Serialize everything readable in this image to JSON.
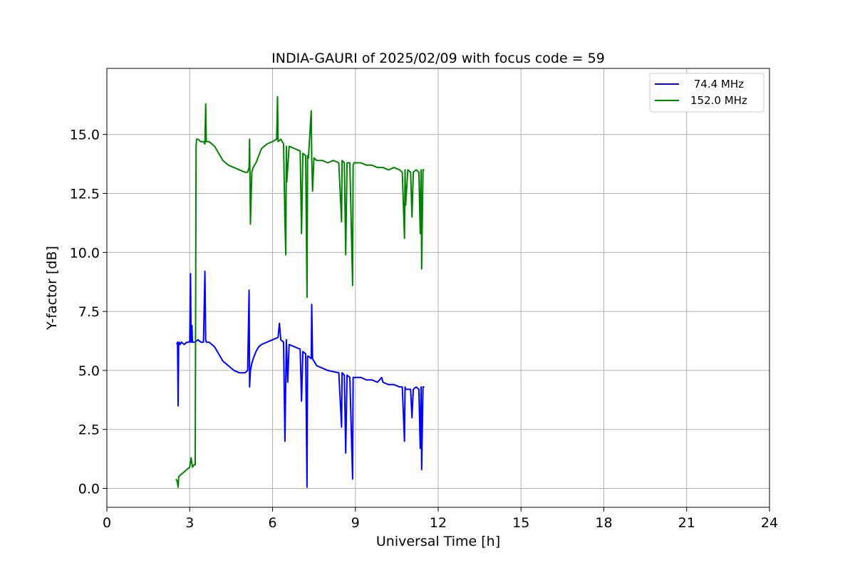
{
  "chart_data": {
    "type": "line",
    "title": "INDIA-GAURI of 2025/02/09 with focus code = 59",
    "xlabel": "Universal Time [h]",
    "ylabel": "Y-factor [dB]",
    "xlim": [
      0,
      24
    ],
    "ylim": [
      -0.8,
      17.8
    ],
    "xticks": [
      0,
      3,
      6,
      9,
      12,
      15,
      18,
      21,
      24
    ],
    "xtick_labels": [
      "0",
      "3",
      "6",
      "9",
      "12",
      "15",
      "18",
      "21",
      "24"
    ],
    "yticks": [
      0,
      2.5,
      5,
      7.5,
      10,
      12.5,
      15
    ],
    "ytick_labels": [
      "0.0",
      "2.5",
      "5.0",
      "7.5",
      "10.0",
      "12.5",
      "15.0"
    ],
    "grid": true,
    "legend_position": "top-right",
    "series": [
      {
        "name": " 74.4 MHz",
        "color": "#0000ff",
        "x": [
          2.53,
          2.56,
          2.58,
          2.6,
          2.62,
          2.65,
          2.7,
          2.8,
          2.9,
          3.0,
          3.03,
          3.05,
          3.08,
          3.1,
          3.2,
          3.3,
          3.4,
          3.5,
          3.55,
          3.58,
          3.6,
          3.7,
          3.8,
          3.9,
          4.0,
          4.1,
          4.2,
          4.4,
          4.6,
          4.8,
          5.0,
          5.1,
          5.15,
          5.17,
          5.2,
          5.25,
          5.3,
          5.4,
          5.5,
          5.6,
          5.8,
          6.0,
          6.2,
          6.25,
          6.3,
          6.4,
          6.45,
          6.5,
          6.55,
          6.6,
          6.8,
          7.0,
          7.05,
          7.1,
          7.2,
          7.25,
          7.27,
          7.3,
          7.4,
          7.42,
          7.45,
          7.5,
          7.6,
          7.8,
          8.0,
          8.2,
          8.4,
          8.5,
          8.52,
          8.6,
          8.65,
          8.7,
          8.8,
          8.9,
          8.92,
          8.95,
          9.0,
          9.2,
          9.4,
          9.6,
          9.8,
          9.95,
          10.0,
          10.2,
          10.4,
          10.6,
          10.7,
          10.78,
          10.8,
          10.82,
          10.9,
          11.0,
          11.05,
          11.1,
          11.2,
          11.3,
          11.35,
          11.38,
          11.4,
          11.45,
          11.5
        ],
        "y": [
          6.1,
          6.2,
          3.5,
          6.1,
          6.2,
          6.1,
          6.2,
          6.1,
          6.2,
          6.2,
          9.1,
          6.2,
          6.9,
          6.2,
          6.2,
          6.3,
          6.2,
          6.2,
          9.2,
          6.3,
          6.2,
          6.2,
          6.1,
          6.0,
          5.8,
          5.6,
          5.4,
          5.2,
          5.0,
          4.9,
          4.9,
          5.0,
          8.4,
          4.3,
          5.0,
          5.3,
          5.5,
          5.8,
          6.0,
          6.1,
          6.2,
          6.3,
          6.4,
          7.0,
          6.3,
          6.2,
          2.0,
          6.3,
          4.5,
          6.1,
          6.0,
          5.9,
          3.7,
          5.8,
          5.7,
          0.05,
          5.6,
          5.6,
          5.5,
          7.8,
          5.5,
          5.4,
          5.2,
          5.1,
          5.0,
          4.95,
          4.9,
          2.6,
          4.9,
          4.8,
          1.5,
          4.8,
          4.7,
          0.4,
          4.7,
          4.7,
          4.7,
          4.7,
          4.6,
          4.6,
          4.5,
          4.7,
          4.5,
          4.4,
          4.4,
          4.3,
          4.3,
          2.0,
          4.3,
          4.2,
          4.2,
          4.2,
          3.0,
          4.2,
          4.3,
          4.2,
          1.7,
          4.3,
          0.8,
          4.3,
          4.3
        ]
      },
      {
        "name": "152.0 MHz",
        "color": "#008000",
        "x": [
          2.5,
          2.55,
          2.58,
          2.6,
          2.7,
          2.8,
          2.9,
          3.0,
          3.05,
          3.1,
          3.15,
          3.2,
          3.23,
          3.25,
          3.3,
          3.4,
          3.5,
          3.55,
          3.58,
          3.6,
          3.7,
          3.8,
          3.9,
          4.0,
          4.1,
          4.2,
          4.4,
          4.6,
          4.8,
          5.0,
          5.1,
          5.15,
          5.17,
          5.2,
          5.25,
          5.3,
          5.4,
          5.5,
          5.6,
          5.8,
          6.0,
          6.15,
          6.18,
          6.2,
          6.3,
          6.4,
          6.45,
          6.48,
          6.5,
          6.52,
          6.6,
          6.8,
          7.0,
          7.05,
          7.1,
          7.2,
          7.25,
          7.27,
          7.3,
          7.4,
          7.42,
          7.45,
          7.5,
          7.6,
          7.8,
          8.0,
          8.2,
          8.4,
          8.5,
          8.52,
          8.6,
          8.65,
          8.7,
          8.8,
          8.9,
          8.92,
          8.95,
          9.0,
          9.2,
          9.4,
          9.6,
          9.8,
          10.0,
          10.2,
          10.4,
          10.6,
          10.7,
          10.78,
          10.8,
          10.82,
          10.9,
          11.0,
          11.05,
          11.1,
          11.2,
          11.3,
          11.35,
          11.38,
          11.4,
          11.45,
          11.5
        ],
        "y": [
          0.4,
          0.3,
          0.05,
          0.5,
          0.6,
          0.7,
          0.8,
          0.9,
          1.3,
          0.9,
          1.0,
          1.0,
          14.5,
          14.8,
          14.8,
          14.7,
          14.7,
          14.6,
          16.3,
          14.7,
          14.7,
          14.6,
          14.5,
          14.3,
          14.1,
          13.9,
          13.7,
          13.6,
          13.5,
          13.4,
          13.4,
          13.6,
          14.8,
          11.2,
          13.4,
          13.6,
          13.8,
          14.1,
          14.4,
          14.6,
          14.7,
          14.8,
          16.6,
          14.7,
          14.8,
          14.6,
          11.3,
          9.9,
          14.5,
          13.0,
          14.5,
          14.4,
          14.3,
          10.8,
          14.2,
          14.1,
          8.1,
          14.1,
          14.0,
          16.0,
          14.0,
          12.6,
          14.0,
          13.9,
          13.9,
          13.8,
          13.9,
          13.8,
          11.3,
          13.9,
          13.8,
          9.9,
          13.8,
          13.8,
          8.6,
          13.7,
          13.8,
          13.8,
          13.8,
          13.7,
          13.7,
          13.6,
          13.6,
          13.5,
          13.6,
          13.5,
          13.4,
          10.6,
          13.5,
          12.0,
          13.5,
          13.4,
          11.5,
          13.4,
          13.5,
          13.4,
          10.8,
          13.5,
          9.3,
          13.5,
          13.5
        ]
      }
    ]
  }
}
